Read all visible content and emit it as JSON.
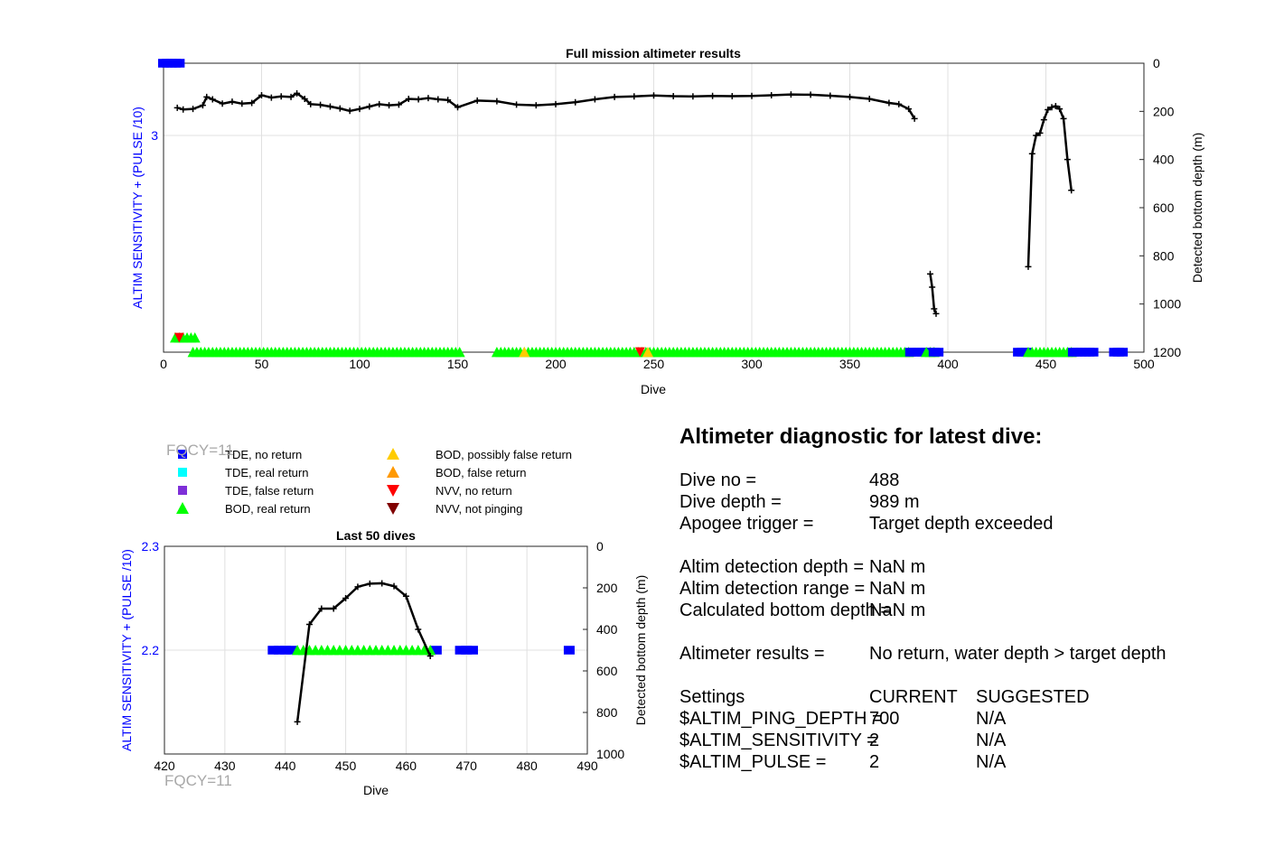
{
  "colors": {
    "tde_no_return": "#0000ff",
    "tde_real_return": "#00ffff",
    "tde_false_return": "#7e2fd8",
    "bod_real_return": "#00ff00",
    "bod_possibly_false_return": "#ffcc00",
    "bod_false_return": "#ff9900",
    "nvv_no_return": "#ff0000",
    "nvv_not_pinging": "#800000",
    "depth_line": "#000000",
    "left_axis_label": "#0000ff",
    "grid": "#e0e0e0"
  },
  "fqcy_label": "FQCY=11",
  "legend": {
    "items": [
      {
        "key": "tde_no_return",
        "label": "TDE, no return",
        "marker": "square"
      },
      {
        "key": "tde_real_return",
        "label": "TDE, real return",
        "marker": "square"
      },
      {
        "key": "tde_false_return",
        "label": "TDE, false return",
        "marker": "square"
      },
      {
        "key": "bod_real_return",
        "label": "BOD, real return",
        "marker": "triangle-up"
      },
      {
        "key": "bod_possibly_false_return",
        "label": "BOD, possibly false return",
        "marker": "triangle-up"
      },
      {
        "key": "bod_false_return",
        "label": "BOD, false return",
        "marker": "triangle-up"
      },
      {
        "key": "nvv_no_return",
        "label": "NVV, no return",
        "marker": "triangle-down"
      },
      {
        "key": "nvv_not_pinging",
        "label": "NVV, not pinging",
        "marker": "triangle-down"
      }
    ]
  },
  "chart_data": [
    {
      "type": "scatter",
      "title": "Full mission altimeter results",
      "xlabel": "Dive",
      "ylabel_left": "ALTIM SENSITIVITY + (PULSE /10)",
      "ylabel_right": "Detected bottom depth (m)",
      "xlim": [
        0,
        500
      ],
      "xticks": [
        0,
        50,
        100,
        150,
        200,
        250,
        300,
        350,
        400,
        450,
        500
      ],
      "ylim_left": [
        1.8,
        3.4
      ],
      "yticks_left": [
        3
      ],
      "ylim_right": [
        1200,
        0
      ],
      "yticks_right": [
        0,
        200,
        400,
        600,
        800,
        1000,
        1200
      ],
      "grid": true,
      "settings_markers": [
        {
          "kind": "tde_no_return",
          "x_start": 0,
          "x_end": 8,
          "y": 3.4
        },
        {
          "kind": "bod_real_return",
          "x_start": 6,
          "x_end": 16,
          "y": 1.88
        },
        {
          "kind": "bod_real_return",
          "x_start": 15,
          "x_end": 152,
          "y": 1.8
        },
        {
          "kind": "bod_real_return",
          "x_start": 170,
          "x_end": 380,
          "y": 1.8
        },
        {
          "kind": "tde_no_return",
          "x_start": 381,
          "x_end": 391,
          "y": 1.8
        },
        {
          "kind": "bod_real_return",
          "x_start": 389,
          "x_end": 393,
          "y": 1.8
        },
        {
          "kind": "tde_no_return",
          "x_start": 393,
          "x_end": 396,
          "y": 1.8
        },
        {
          "kind": "tde_no_return",
          "x_start": 436,
          "x_end": 441,
          "y": 1.8
        },
        {
          "kind": "bod_real_return",
          "x_start": 441,
          "x_end": 464,
          "y": 1.8
        },
        {
          "kind": "tde_no_return",
          "x_start": 464,
          "x_end": 474,
          "y": 1.8
        },
        {
          "kind": "tde_no_return",
          "x_start": 485,
          "x_end": 489,
          "y": 1.8
        }
      ],
      "special_markers": [
        {
          "kind": "nvv_no_return",
          "x": 8,
          "y": 1.88
        },
        {
          "kind": "bod_possibly_false_return",
          "x": 184,
          "y": 1.8
        },
        {
          "kind": "nvv_no_return",
          "x": 243,
          "y": 1.8
        },
        {
          "kind": "bod_possibly_false_return",
          "x": 247,
          "y": 1.8
        }
      ],
      "bottom_depth_series": [
        {
          "x": [
            7,
            10,
            15,
            20,
            22,
            25,
            30,
            35,
            40,
            45,
            50,
            55,
            60,
            65,
            68,
            72,
            75,
            80,
            85,
            90,
            95,
            100,
            105,
            110,
            115,
            120,
            125,
            130,
            135,
            140,
            145,
            150,
            160,
            170,
            180,
            190,
            200,
            210,
            220,
            230,
            240,
            250,
            260,
            270,
            280,
            290,
            300,
            310,
            320,
            330,
            340,
            350,
            360,
            370,
            375,
            380,
            383
          ],
          "y": [
            185,
            192,
            190,
            175,
            140,
            150,
            168,
            160,
            168,
            165,
            133,
            143,
            138,
            140,
            125,
            148,
            170,
            173,
            180,
            188,
            198,
            190,
            180,
            170,
            175,
            172,
            148,
            150,
            145,
            150,
            153,
            183,
            155,
            158,
            172,
            175,
            170,
            162,
            150,
            140,
            138,
            134,
            137,
            138,
            136,
            137,
            136,
            133,
            130,
            131,
            135,
            140,
            148,
            165,
            170,
            190,
            230
          ]
        },
        {
          "x": [
            391,
            392,
            393,
            394
          ],
          "y": [
            875,
            930,
            1020,
            1040
          ]
        },
        {
          "x": [
            441,
            443,
            445,
            447,
            449,
            451,
            453,
            455,
            457,
            459,
            461,
            463
          ],
          "y": [
            845,
            376,
            300,
            290,
            235,
            193,
            183,
            178,
            190,
            230,
            400,
            528
          ]
        }
      ]
    },
    {
      "type": "scatter",
      "title": "Last 50 dives",
      "xlabel": "Dive",
      "ylabel_left": "ALTIM SENSITIVITY + (PULSE /10)",
      "ylabel_right": "Detected bottom depth (m)",
      "xlim": [
        420,
        490
      ],
      "xticks": [
        420,
        430,
        440,
        450,
        460,
        470,
        480,
        490
      ],
      "ylim_left": [
        2.1,
        2.3
      ],
      "yticks_left": [
        2.2,
        2.3
      ],
      "ylim_right": [
        1000,
        0
      ],
      "yticks_right": [
        0,
        200,
        400,
        600,
        800,
        1000
      ],
      "grid": true,
      "settings_markers": [
        {
          "kind": "tde_no_return",
          "x": [
            438,
            439,
            440,
            441,
            465,
            469,
            470,
            471,
            487
          ],
          "y": 2.2
        },
        {
          "kind": "bod_real_return",
          "x": [
            442,
            443,
            444,
            445,
            446,
            447,
            448,
            449,
            450,
            451,
            452,
            453,
            454,
            455,
            456,
            457,
            458,
            459,
            460,
            461,
            462,
            463,
            464
          ],
          "y": 2.2
        }
      ],
      "bottom_depth_series": [
        {
          "x": [
            442,
            444,
            446,
            448,
            450,
            452,
            454,
            456,
            458,
            460,
            462,
            464
          ],
          "y": [
            845,
            376,
            300,
            300,
            250,
            195,
            180,
            178,
            192,
            240,
            400,
            528
          ]
        }
      ]
    }
  ],
  "diagnostic": {
    "title": "Altimeter diagnostic for latest dive:",
    "dive_no_label": "Dive no =",
    "dive_no_value": "488",
    "dive_depth_label": "Dive depth =",
    "dive_depth_value": "989 m",
    "apogee_label": "Apogee trigger =",
    "apogee_value": "Target depth exceeded",
    "det_depth_label": "Altim detection depth =",
    "det_depth_value": "NaN m",
    "det_range_label": "Altim detection range =",
    "det_range_value": "NaN m",
    "calc_depth_label": "Calculated bottom depth =",
    "calc_depth_value": "NaN m",
    "results_label": "Altimeter results =",
    "results_value": "No return, water depth > target depth",
    "settings_label": "Settings",
    "current_label": "CURRENT",
    "suggested_label": "SUGGESTED",
    "ping_depth_label": "$ALTIM_PING_DEPTH =",
    "ping_depth_current": "700",
    "ping_depth_suggested": "N/A",
    "sensitivity_label": "$ALTIM_SENSITIVITY =",
    "sensitivity_current": "2",
    "sensitivity_suggested": "N/A",
    "pulse_label": "$ALTIM_PULSE =",
    "pulse_current": "2",
    "pulse_suggested": "N/A"
  }
}
